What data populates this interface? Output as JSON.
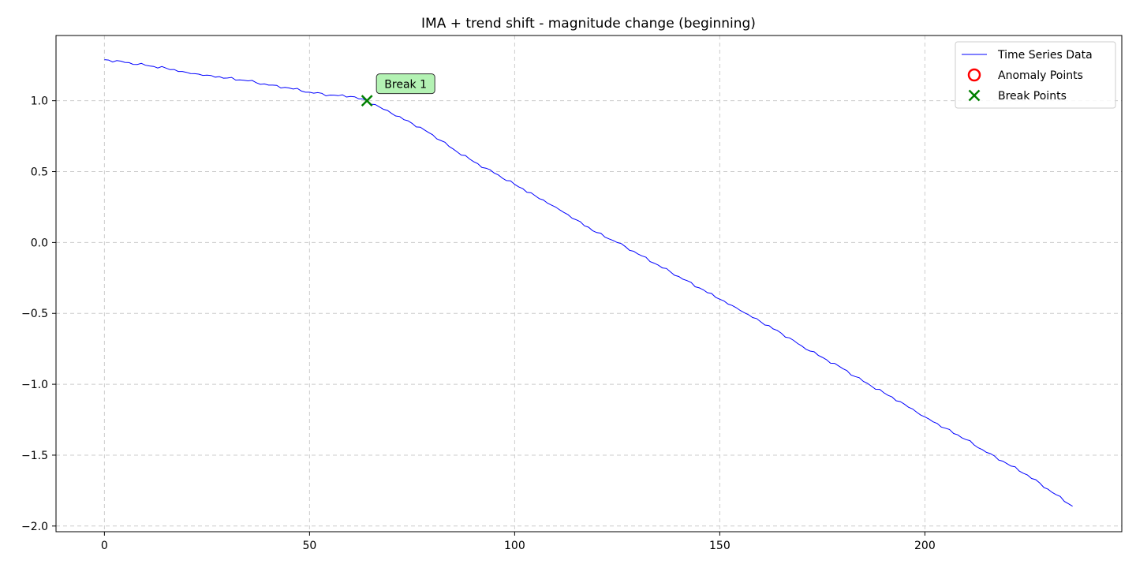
{
  "chart_data": {
    "type": "line",
    "title": "IMA + trend shift - magnitude change (beginning)",
    "xlabel": "",
    "ylabel": "",
    "xlim": [
      -11.8,
      248
    ],
    "ylim": [
      -2.04,
      1.46
    ],
    "xticks": [
      0,
      50,
      100,
      150,
      200
    ],
    "yticks": [
      -2.0,
      -1.5,
      -1.0,
      -0.5,
      0.0,
      0.5,
      1.0
    ],
    "xtick_labels": [
      "0",
      "50",
      "100",
      "150",
      "200"
    ],
    "ytick_labels": [
      "−2.0",
      "−1.5",
      "−1.0",
      "−0.5",
      "0.0",
      "0.5",
      "1.0"
    ],
    "grid": true,
    "legend_position": "top-right",
    "series": [
      {
        "name": "Time Series Data",
        "color": "#0000ff",
        "x": [
          0,
          5,
          10,
          15,
          20,
          25,
          30,
          35,
          40,
          45,
          50,
          55,
          60,
          64,
          70,
          75,
          80,
          85,
          90,
          95,
          100,
          105,
          110,
          115,
          120,
          125,
          130,
          135,
          140,
          145,
          150,
          155,
          160,
          165,
          170,
          175,
          180,
          185,
          190,
          195,
          200,
          205,
          210,
          215,
          220,
          225,
          230,
          236
        ],
        "y": [
          1.29,
          1.27,
          1.25,
          1.23,
          1.2,
          1.18,
          1.16,
          1.14,
          1.11,
          1.09,
          1.06,
          1.04,
          1.03,
          1.0,
          0.91,
          0.84,
          0.76,
          0.66,
          0.57,
          0.49,
          0.41,
          0.33,
          0.25,
          0.16,
          0.07,
          0.0,
          -0.08,
          -0.16,
          -0.24,
          -0.32,
          -0.4,
          -0.48,
          -0.56,
          -0.64,
          -0.73,
          -0.81,
          -0.89,
          -0.98,
          -1.06,
          -1.14,
          -1.23,
          -1.31,
          -1.39,
          -1.48,
          -1.56,
          -1.64,
          -1.74,
          -1.86
        ]
      },
      {
        "name": "Anomaly Points",
        "color": "#ff0000",
        "x": [],
        "y": []
      },
      {
        "name": "Break Points",
        "color": "#008000",
        "x": [
          64
        ],
        "y": [
          1.0
        ]
      }
    ],
    "annotations": [
      {
        "text": "Break 1",
        "x": 64,
        "y": 1.0,
        "background": "#b3f2b3"
      }
    ]
  }
}
